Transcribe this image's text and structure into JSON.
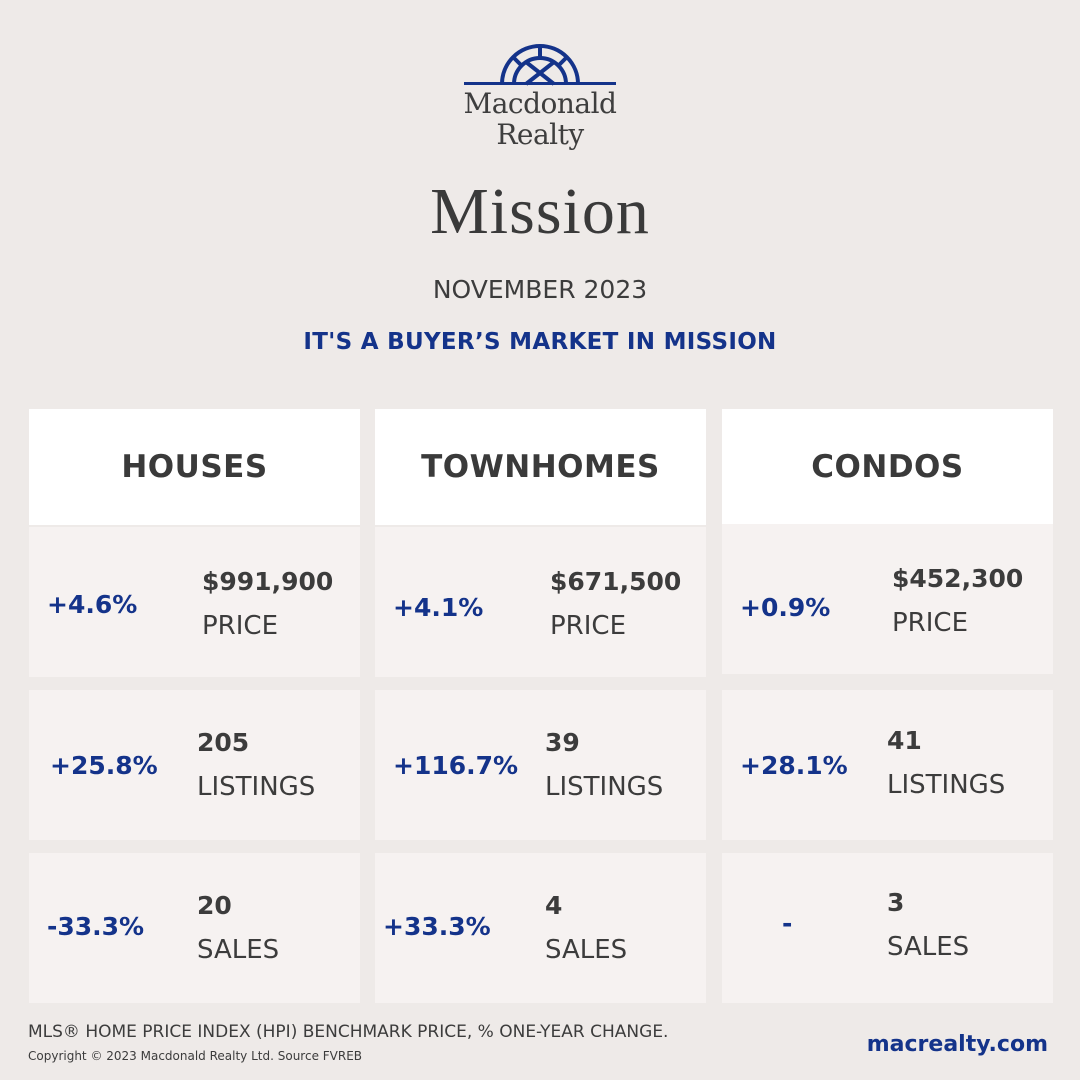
{
  "brand": {
    "name_line1": "Macdonald",
    "name_line2": "Realty",
    "color": "#14338a"
  },
  "city": "Mission",
  "period": "NOVEMBER 2023",
  "headline": "IT'S A BUYER’S MARKET IN MISSION",
  "columns": [
    {
      "title": "HOUSES",
      "price": {
        "change": "+4.6%",
        "value": "$991,900",
        "label": "PRICE"
      },
      "listings": {
        "change": "+25.8%",
        "value": "205",
        "label": "LISTINGS"
      },
      "sales": {
        "change": "-33.3%",
        "value": "20",
        "label": "SALES"
      }
    },
    {
      "title": "TOWNHOMES",
      "price": {
        "change": "+4.1%",
        "value": "$671,500",
        "label": "PRICE"
      },
      "listings": {
        "change": "+116.7%",
        "value": "39",
        "label": "LISTINGS"
      },
      "sales": {
        "change": "+33.3%",
        "value": "4",
        "label": "SALES"
      }
    },
    {
      "title": "CONDOS",
      "price": {
        "change": "+0.9%",
        "value": "$452,300",
        "label": "PRICE"
      },
      "listings": {
        "change": "+28.1%",
        "value": "41",
        "label": "LISTINGS"
      },
      "sales": {
        "change": "-",
        "value": "3",
        "label": "SALES"
      }
    }
  ],
  "footer": {
    "note": "MLS® HOME PRICE INDEX (HPI) BENCHMARK PRICE, % ONE-YEAR CHANGE.",
    "copyright": "Copyright © 2023 Macdonald Realty Ltd. Source FVREB",
    "website": "macrealty.com"
  },
  "colors": {
    "background": "#eeeae8",
    "card": "#f6f2f1",
    "header_card": "#ffffff",
    "accent": "#14338a",
    "text": "#3c3c3c"
  }
}
